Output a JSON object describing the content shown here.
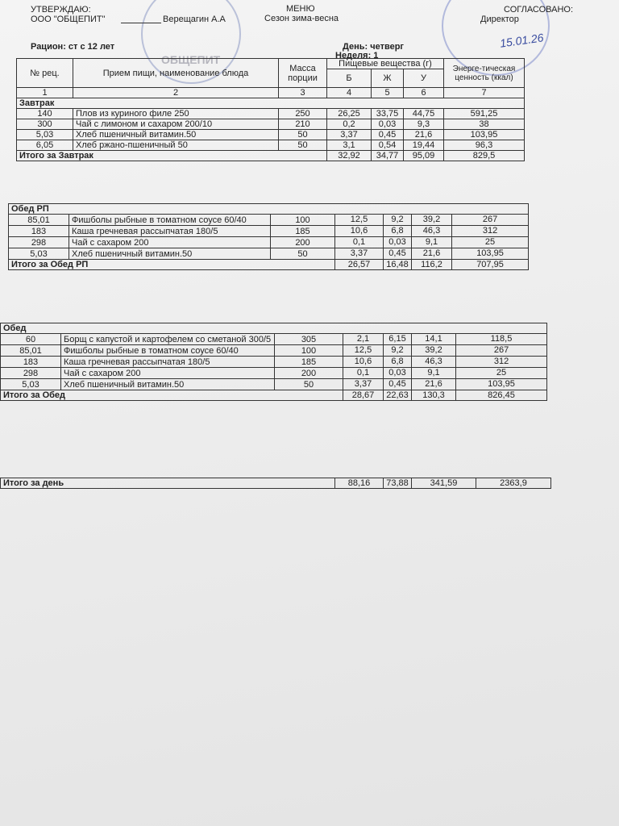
{
  "header": {
    "approve_title": "УТВЕРЖДАЮ:",
    "approve_org": "ООО \"ОБЩЕПИТ\"",
    "approve_name": "Верещагин А.А",
    "menu_title": "МЕНЮ",
    "season": "Сезон зима-весна",
    "agreed_title": "СОГЛАСОВАНО:",
    "agreed_role": "Директор",
    "stamp_text": "ОБЩЕПИТ",
    "date_note": "15.01.26",
    "ration": "Рацион: ст с 12 лет",
    "day": "День: четверг",
    "week": "Неделя: 1"
  },
  "table_header": {
    "code": "№ рец.",
    "name": "Прием пищи, наименование блюда",
    "mass": "Масса порции",
    "nutrients": "Пищевые вещества (г)",
    "protein": "Б",
    "fat": "Ж",
    "carbs": "У",
    "energy": "Энерге-тическая ценность (ккал)",
    "column_numbers": [
      "1",
      "2",
      "3",
      "4",
      "5",
      "6",
      "7"
    ]
  },
  "sections": [
    {
      "title": "Завтрак",
      "rows": [
        [
          "140",
          "Плов из куриного филе 250",
          "250",
          "26,25",
          "33,75",
          "44,75",
          "591,25"
        ],
        [
          "300",
          "Чай с лимоном и сахаром 200/10",
          "210",
          "0,2",
          "0,03",
          "9,3",
          "38"
        ],
        [
          "5,03",
          "Хлеб пшеничный витамин.50",
          "50",
          "3,37",
          "0,45",
          "21,6",
          "103,95"
        ],
        [
          "6,05",
          "Хлеб ржано-пшеничный 50",
          "50",
          "3,1",
          "0,54",
          "19,44",
          "96,3"
        ]
      ],
      "total_label": "Итого за Завтрак",
      "totals": [
        "32,92",
        "34,77",
        "95,09",
        "829,5"
      ]
    },
    {
      "title": "Обед РП",
      "rows": [
        [
          "85,01",
          "Фишболы рыбные  в томатном соусе 60/40",
          "100",
          "12,5",
          "9,2",
          "39,2",
          "267"
        ],
        [
          "183",
          "Каша гречневая рассыпчатая 180/5",
          "185",
          "10,6",
          "6,8",
          "46,3",
          "312"
        ],
        [
          "298",
          "Чай с сахаром 200",
          "200",
          "0,1",
          "0,03",
          "9,1",
          "25"
        ],
        [
          "5,03",
          "Хлеб пшеничный витамин.50",
          "50",
          "3,37",
          "0,45",
          "21,6",
          "103,95"
        ]
      ],
      "total_label": "Итого за Обед РП",
      "totals": [
        "26,57",
        "16,48",
        "116,2",
        "707,95"
      ]
    },
    {
      "title": "Обед",
      "rows": [
        [
          "60",
          "Борщ с капустой и картофелем со сметаной 300/5",
          "305",
          "2,1",
          "6,15",
          "14,1",
          "118,5"
        ],
        [
          "85,01",
          "Фишболы рыбные  в томатном соусе 60/40",
          "100",
          "12,5",
          "9,2",
          "39,2",
          "267"
        ],
        [
          "183",
          "Каша гречневая рассыпчатая 180/5",
          "185",
          "10,6",
          "6,8",
          "46,3",
          "312"
        ],
        [
          "298",
          "Чай с сахаром 200",
          "200",
          "0,1",
          "0,03",
          "9,1",
          "25"
        ],
        [
          "5,03",
          "Хлеб пшеничный витамин.50",
          "50",
          "3,37",
          "0,45",
          "21,6",
          "103,95"
        ]
      ],
      "total_label": "Итого за Обед",
      "totals": [
        "28,67",
        "22,63",
        "130,3",
        "826,45"
      ]
    }
  ],
  "day_total": {
    "label": "Итого за день",
    "values": [
      "88,16",
      "73,88",
      "341,59",
      "2363,9"
    ]
  }
}
